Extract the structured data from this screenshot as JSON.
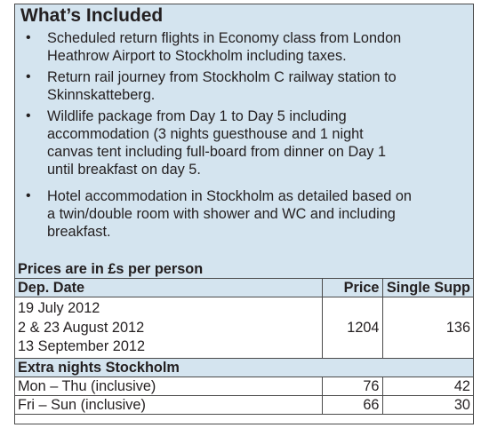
{
  "included": {
    "title": "What’s Included",
    "items": [
      {
        "line1": "Scheduled return flights in Economy class from London",
        "line2": "Heathrow Airport to Stockholm including taxes."
      },
      {
        "line1": "Return rail journey from Stockholm C railway station to",
        "line2": "Skinnskatteberg."
      },
      {
        "line1": "Wildlife package from Day 1 to Day 5 including",
        "line2": "accommodation (3 nights guesthouse and 1 night",
        "line3": "canvas tent including full-board from dinner on Day 1",
        "line4": "until breakfast on day 5."
      },
      {
        "line1": "Hotel accommodation in Stockholm as detailed based on",
        "line2": "a twin/double room with shower and WC and including",
        "line3": "breakfast."
      }
    ]
  },
  "prices": {
    "heading": "Prices are in £s per person",
    "columns": {
      "date": "Dep. Date",
      "price": "Price",
      "single": "Single Supp"
    },
    "dates": [
      "19 July 2012",
      "2 & 23 August 2012",
      "13 September 2012"
    ],
    "price": "1204",
    "single": "136",
    "extra_heading": "Extra nights Stockholm",
    "extra_rows": [
      {
        "label": "Mon – Thu (inclusive)",
        "price": "76",
        "single": "42"
      },
      {
        "label": "Fri – Sun (inclusive)",
        "price": "66",
        "single": "30"
      }
    ]
  }
}
